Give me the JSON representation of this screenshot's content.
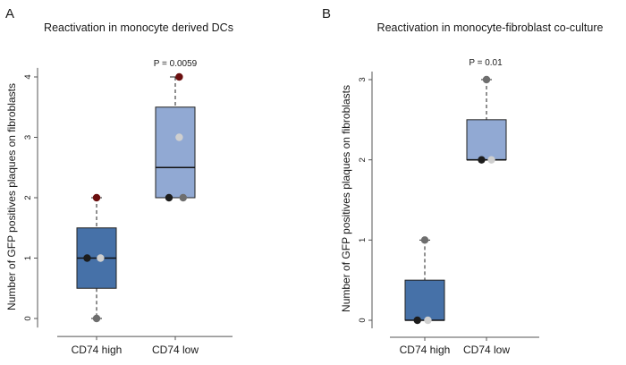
{
  "chart_data": [
    {
      "panel": "A",
      "type": "box",
      "title": "Reactivation in monocyte derived DCs",
      "ylabel": "Number of GFP positives plaques on fibroblasts",
      "xlabel": "",
      "ylim": [
        -0.15,
        4.15
      ],
      "yticks": [
        0,
        1,
        2,
        3,
        4
      ],
      "p_value_label": "P = 0.0059",
      "categories": [
        "CD74 high",
        "CD74 low"
      ],
      "boxes": [
        {
          "category": "CD74 high",
          "q1": 0.5,
          "median": 1,
          "q3": 1.5,
          "whisker_low": 0,
          "whisker_high": 2,
          "fill": "#4671a8"
        },
        {
          "category": "CD74 low",
          "q1": 2,
          "median": 2.5,
          "q3": 3.5,
          "whisker_low": 2,
          "whisker_high": 4,
          "fill": "#91a9d3"
        }
      ],
      "points": [
        {
          "category": "CD74 high",
          "offset": 0,
          "value": 2,
          "color": "#6b0f0f"
        },
        {
          "category": "CD74 high",
          "offset": -0.12,
          "value": 1,
          "color": "#1c1c1c"
        },
        {
          "category": "CD74 high",
          "offset": 0.05,
          "value": 1,
          "color": "#cfcfcf"
        },
        {
          "category": "CD74 high",
          "offset": 0,
          "value": 0,
          "color": "#6e6e6e"
        },
        {
          "category": "CD74 low",
          "offset": 0.05,
          "value": 4,
          "color": "#6b0f0f"
        },
        {
          "category": "CD74 low",
          "offset": 0.05,
          "value": 3,
          "color": "#cfcfcf"
        },
        {
          "category": "CD74 low",
          "offset": -0.08,
          "value": 2,
          "color": "#1c1c1c"
        },
        {
          "category": "CD74 low",
          "offset": 0.1,
          "value": 2,
          "color": "#6e6e6e"
        }
      ]
    },
    {
      "panel": "B",
      "type": "box",
      "title": "Reactivation in monocyte-fibroblast co-culture",
      "ylabel": "Number of GFP positives plaques on fibroblasts",
      "xlabel": "",
      "ylim": [
        -0.1,
        3.1
      ],
      "yticks": [
        0,
        1,
        2,
        3
      ],
      "p_value_label": "P = 0.01",
      "categories": [
        "CD74 high",
        "CD74 low"
      ],
      "boxes": [
        {
          "category": "CD74 high",
          "q1": 0,
          "median": 0,
          "q3": 0.5,
          "whisker_low": 0,
          "whisker_high": 1,
          "fill": "#4671a8"
        },
        {
          "category": "CD74 low",
          "q1": 2,
          "median": 2,
          "q3": 2.5,
          "whisker_low": 2,
          "whisker_high": 3,
          "fill": "#91a9d3"
        }
      ],
      "points": [
        {
          "category": "CD74 high",
          "offset": 0,
          "value": 1,
          "color": "#6e6e6e"
        },
        {
          "category": "CD74 high",
          "offset": -0.12,
          "value": 0,
          "color": "#1c1c1c"
        },
        {
          "category": "CD74 high",
          "offset": 0.05,
          "value": 0,
          "color": "#cfcfcf"
        },
        {
          "category": "CD74 low",
          "offset": 0,
          "value": 3,
          "color": "#6e6e6e"
        },
        {
          "category": "CD74 low",
          "offset": -0.08,
          "value": 2,
          "color": "#1c1c1c"
        },
        {
          "category": "CD74 low",
          "offset": 0.08,
          "value": 2,
          "color": "#cfcfcf"
        }
      ]
    }
  ]
}
